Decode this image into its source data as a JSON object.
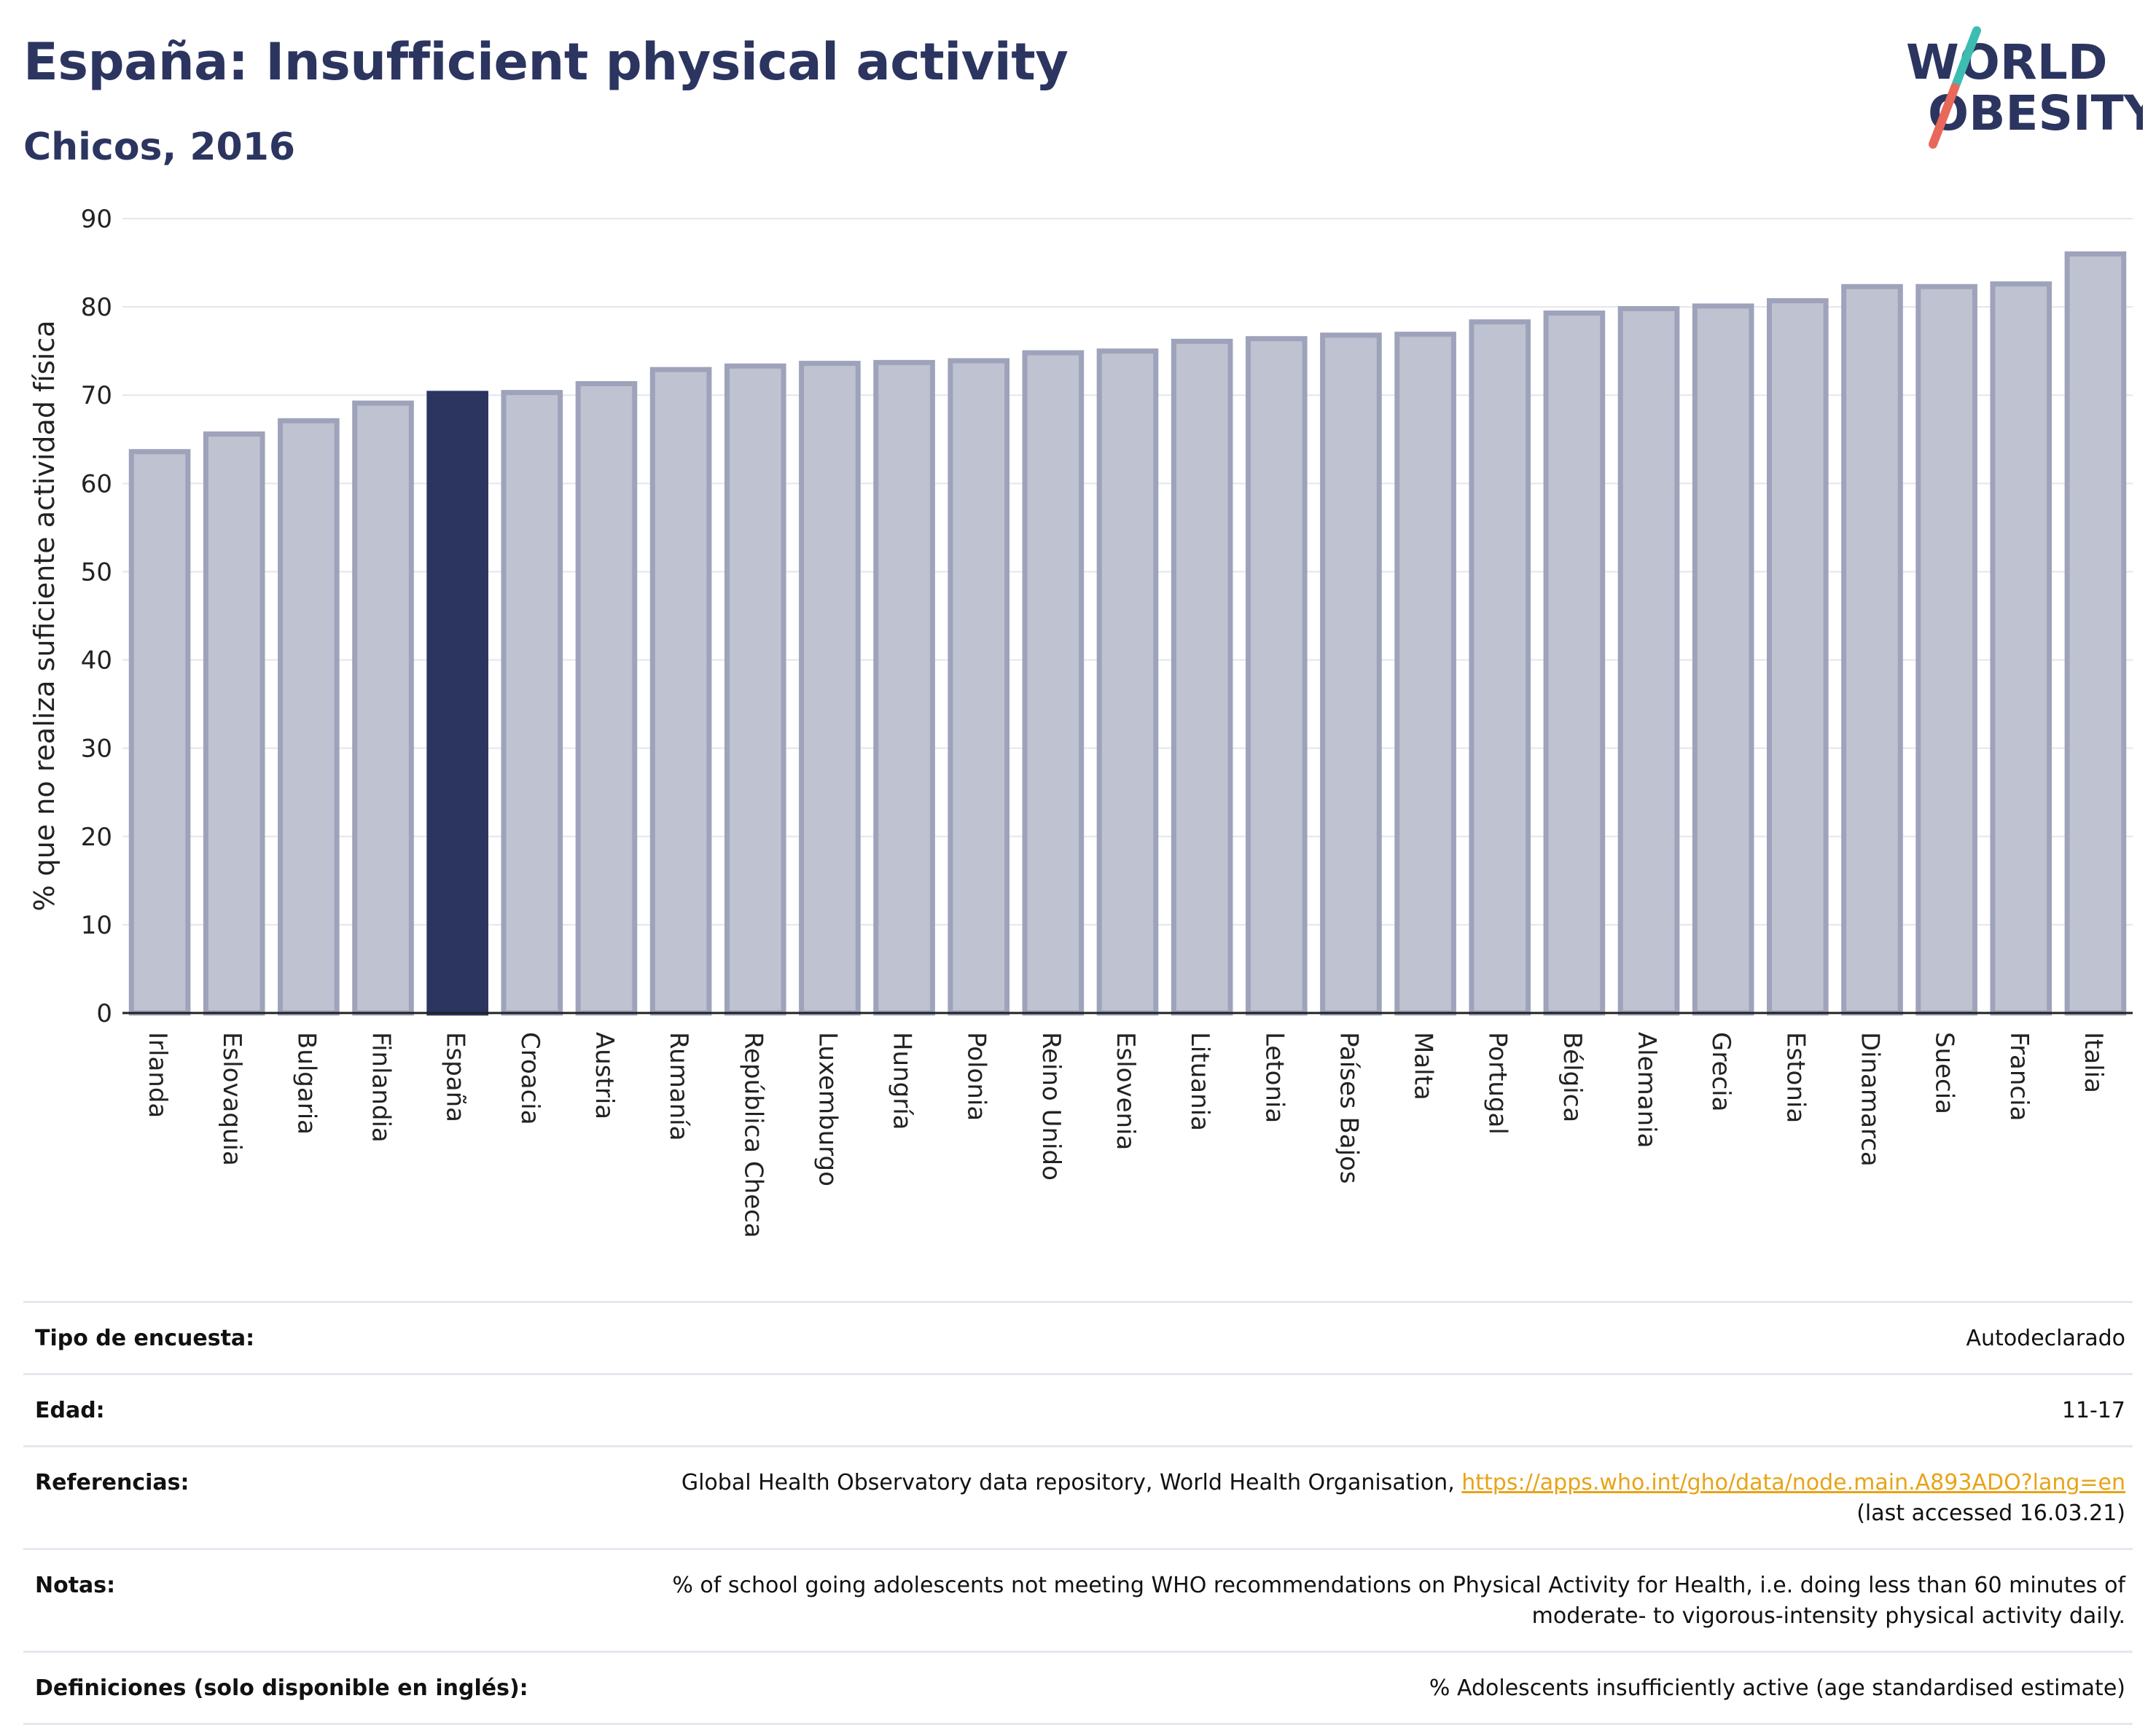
{
  "header": {
    "title": "España: Insufficient physical activity",
    "subtitle": "Chicos, 2016",
    "logo_line1": "WORLD",
    "logo_line2": "OBESITY"
  },
  "colors": {
    "highlight_bar": "#2b3560",
    "other_bar_fill": "#bfc2d0",
    "other_bar_stroke": "#9ea3bb",
    "title": "#2b3560",
    "link": "#e8a317",
    "logo_slash_teal": "#3dbdb1",
    "logo_slash_coral": "#e8685a"
  },
  "chart_data": {
    "type": "bar",
    "ylabel": "% que no realiza suficiente actividad física",
    "xlabel": "",
    "ylim": [
      0,
      90
    ],
    "yticks": [
      0,
      10,
      20,
      30,
      40,
      50,
      60,
      70,
      80,
      90
    ],
    "grid": true,
    "highlight": "España",
    "categories": [
      "Irlanda",
      "Eslovaquia",
      "Bulgaria",
      "Finlandia",
      "España",
      "Croacia",
      "Austria",
      "Rumanía",
      "República Checa",
      "Luxemburgo",
      "Hungría",
      "Polonia",
      "Reino Unido",
      "Eslovenia",
      "Lituania",
      "Letonia",
      "Países Bajos",
      "Malta",
      "Portugal",
      "Bélgica",
      "Alemania",
      "Grecia",
      "Estonia",
      "Dinamarca",
      "Suecia",
      "Francia",
      "Italia"
    ],
    "values": [
      63.6,
      65.6,
      67.1,
      69.1,
      70.2,
      70.3,
      71.3,
      72.9,
      73.3,
      73.6,
      73.7,
      73.9,
      74.8,
      75.0,
      76.1,
      76.4,
      76.8,
      76.9,
      78.3,
      79.3,
      79.8,
      80.1,
      80.7,
      82.3,
      82.3,
      82.6,
      86.0
    ]
  },
  "info": {
    "survey_type_label": "Tipo de encuesta:",
    "survey_type_value": "Autodeclarado",
    "age_label": "Edad:",
    "age_value": "11-17",
    "references_label": "Referencias:",
    "references_text": "Global Health Observatory data repository, World Health Organisation, ",
    "references_link": "https://apps.who.int/gho/data/node.main.A893ADO?lang=en",
    "references_accessed": "(last accessed 16.03.21)",
    "notes_label": "Notas:",
    "notes_line1": "% of school going adolescents not meeting WHO recommendations on Physical Activity for Health, i.e. doing less than 60 minutes of",
    "notes_line2": "moderate- to vigorous-intensity physical activity daily.",
    "definitions_label": "Definiciones (solo disponible en inglés):",
    "definitions_value": "% Adolescents insufficiently active (age standardised estimate)"
  }
}
